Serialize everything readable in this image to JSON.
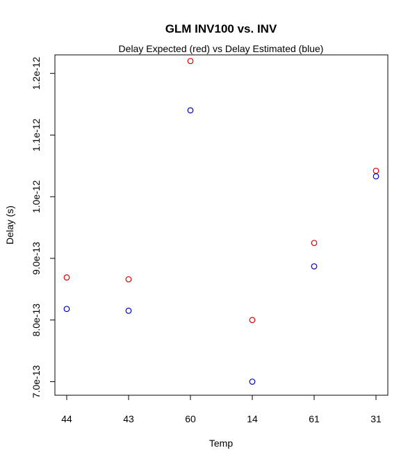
{
  "chart_data": {
    "type": "scatter",
    "title": "GLM INV100 vs. INV",
    "subtitle": "Delay Expected (red) vs Delay Estimated (blue)",
    "xlabel": "Temp",
    "ylabel": "Delay (s)",
    "categories": [
      "44",
      "43",
      "60",
      "14",
      "61",
      "31"
    ],
    "yticks": [
      7e-13,
      8e-13,
      9e-13,
      1e-12,
      1.1e-12,
      1.2e-12
    ],
    "ytick_labels": [
      "7.0e-13",
      "8.0e-13",
      "9.0e-13",
      "1.0e-12",
      "1.1e-12",
      "1.2e-12"
    ],
    "ylim": [
      6.78e-13,
      1.23e-12
    ],
    "grid": false,
    "series": [
      {
        "color": "#dd0000",
        "values": [
          8.69e-13,
          8.66e-13,
          1.22e-12,
          8e-13,
          9.25e-13,
          1.042e-12
        ]
      },
      {
        "color": "#0000cc",
        "values": [
          8.18e-13,
          8.15e-13,
          1.14e-12,
          7e-13,
          8.87e-13,
          1.033e-12
        ]
      }
    ]
  }
}
